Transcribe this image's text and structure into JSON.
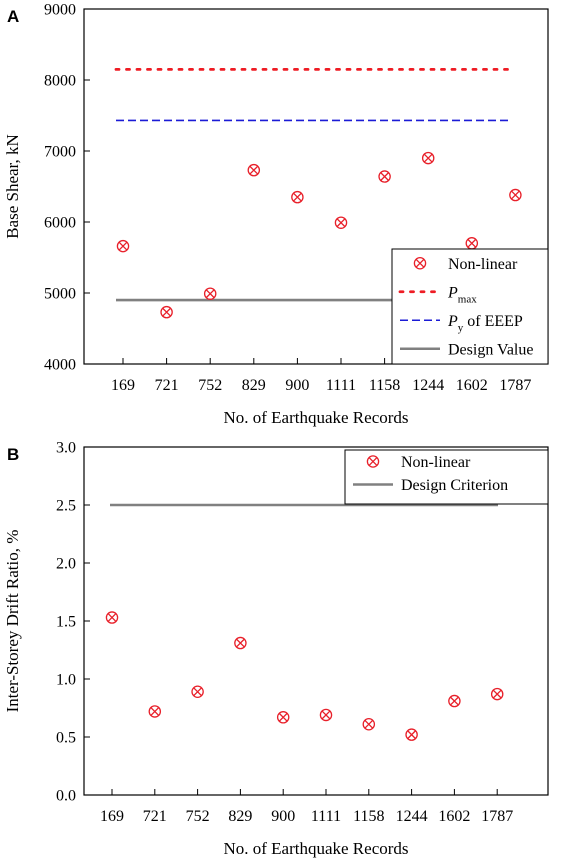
{
  "chart_data": [
    {
      "panel": "A",
      "type": "scatter",
      "xlabel": "No. of Earthquake Records",
      "ylabel": "Base Shear, kN",
      "categories": [
        "169",
        "721",
        "752",
        "829",
        "900",
        "1111",
        "1158",
        "1244",
        "1602",
        "1787"
      ],
      "ylim": [
        4000,
        9000
      ],
      "yticks": [
        4000,
        5000,
        6000,
        7000,
        8000,
        9000
      ],
      "grid": false,
      "legend_position": "bottom-right",
      "series": [
        {
          "name": "Non-linear",
          "kind": "markers",
          "marker": "circled-x",
          "color": "#e8202a",
          "values": [
            5660,
            4730,
            4990,
            6730,
            6350,
            5990,
            6640,
            6900,
            5700,
            6380
          ]
        },
        {
          "name": "P",
          "name_sub": "max",
          "kind": "line",
          "style": "dotted",
          "color": "#ee1c24",
          "value": 8150
        },
        {
          "name": "P",
          "name_sub": "y",
          "name_suffix": " of EEEP",
          "kind": "line",
          "style": "dashed",
          "color": "#1b1bd6",
          "value": 7430
        },
        {
          "name": "Design Value",
          "kind": "line",
          "style": "solid",
          "color": "#808080",
          "value": 4900
        }
      ]
    },
    {
      "panel": "B",
      "type": "scatter",
      "xlabel": "No. of Earthquake Records",
      "ylabel": "Inter-Storey Drift Ratio, %",
      "categories": [
        "169",
        "721",
        "752",
        "829",
        "900",
        "1111",
        "1158",
        "1244",
        "1602",
        "1787"
      ],
      "ylim": [
        0.0,
        3.0
      ],
      "yticks": [
        "0.0",
        "0.5",
        "1.0",
        "1.5",
        "2.0",
        "2.5",
        "3.0"
      ],
      "grid": false,
      "legend_position": "top-right",
      "series": [
        {
          "name": "Non-linear",
          "kind": "markers",
          "marker": "circled-x",
          "color": "#e8202a",
          "values": [
            1.53,
            0.72,
            0.89,
            1.31,
            0.67,
            0.69,
            0.61,
            0.52,
            0.81,
            0.87
          ]
        },
        {
          "name": "Design Criterion",
          "kind": "line",
          "style": "solid",
          "color": "#808080",
          "value": 2.5
        }
      ]
    }
  ]
}
